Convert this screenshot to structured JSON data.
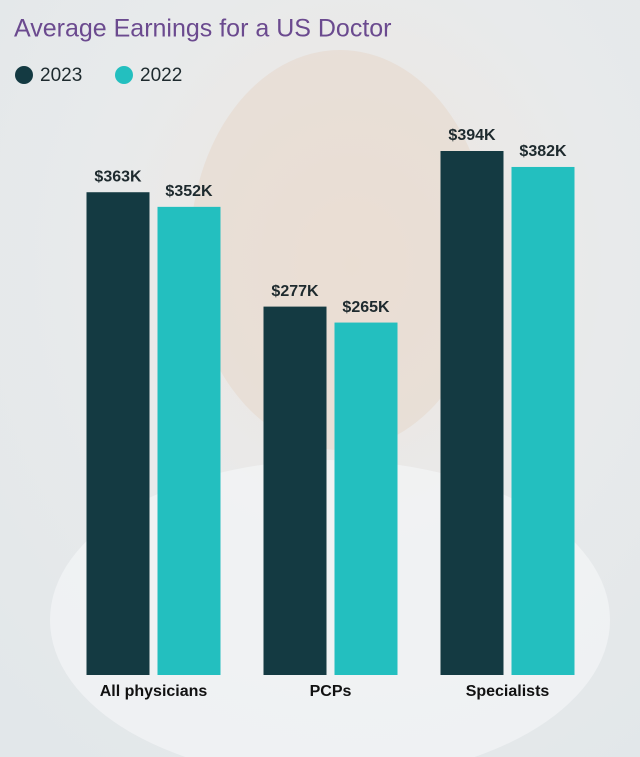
{
  "chart_data": {
    "type": "bar",
    "title": "Average Earnings for a US Doctor",
    "categories": [
      "All physicians",
      "PCPs",
      "Specialists"
    ],
    "series": [
      {
        "name": "2023",
        "color": "#143a42",
        "values": [
          363,
          277,
          394
        ],
        "value_labels": [
          "$363K",
          "$277K",
          "$394K"
        ]
      },
      {
        "name": "2022",
        "color": "#23bfbf",
        "values": [
          352,
          265,
          382
        ],
        "value_labels": [
          "$352K",
          "$265K",
          "$382K"
        ]
      }
    ]
  }
}
